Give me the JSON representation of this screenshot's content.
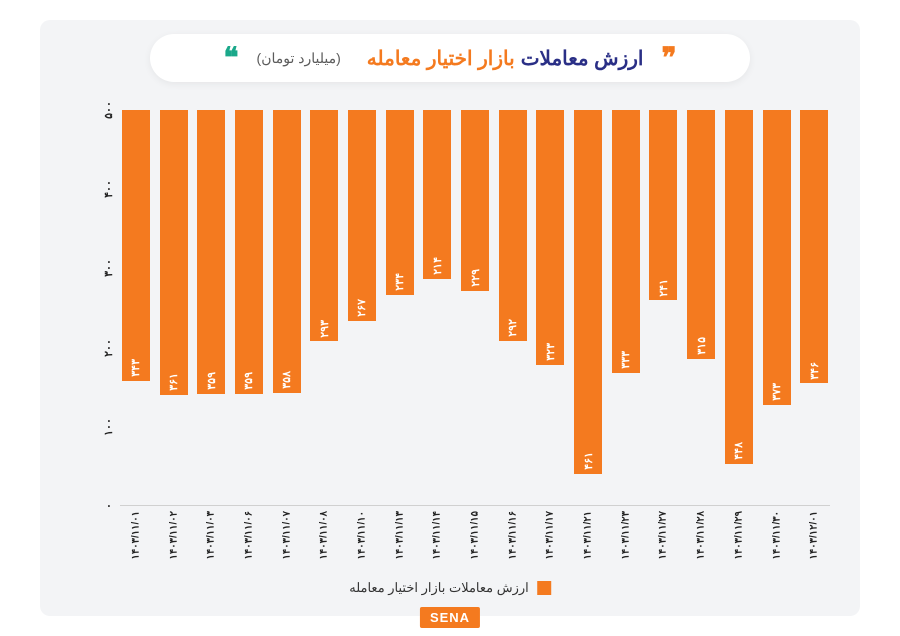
{
  "chart": {
    "type": "bar",
    "title_blue": "ارزش معاملات",
    "title_orange": "بازار اختیار معامله",
    "unit": "(میلیارد تومان)",
    "background_color": "#f3f4f6",
    "page_background": "#ffffff",
    "bar_color": "#f47a1f",
    "title_blue_color": "#2a2f86",
    "title_orange_color": "#f47a1f",
    "quote_right_color": "#f47a1f",
    "quote_left_color": "#1aa88a",
    "ylim": [
      0,
      500
    ],
    "ytick_step": 100,
    "yticks": [
      "۰",
      "۱۰۰",
      "۲۰۰",
      "۳۰۰",
      "۴۰۰",
      "۵۰۰"
    ],
    "legend_label": "ارزش معاملات بازار اختیار معامله",
    "bars": [
      {
        "date": "۱۴۰۳/۱۱/۰۱",
        "value": 343,
        "label": "۳۴۳"
      },
      {
        "date": "۱۴۰۳/۱۱/۰۲",
        "value": 361,
        "label": "۳۶۱"
      },
      {
        "date": "۱۴۰۳/۱۱/۰۳",
        "value": 359,
        "label": "۳۵۹"
      },
      {
        "date": "۱۴۰۳/۱۱/۰۶",
        "value": 359,
        "label": "۳۵۹"
      },
      {
        "date": "۱۴۰۳/۱۱/۰۷",
        "value": 358,
        "label": "۳۵۸"
      },
      {
        "date": "۱۴۰۳/۱۱/۰۸",
        "value": 293,
        "label": "۲۹۳"
      },
      {
        "date": "۱۴۰۳/۱۱/۱۰",
        "value": 267,
        "label": "۲۶۷"
      },
      {
        "date": "۱۴۰۳/۱۱/۱۳",
        "value": 234,
        "label": "۲۳۴"
      },
      {
        "date": "۱۴۰۳/۱۱/۱۴",
        "value": 214,
        "label": "۲۱۴"
      },
      {
        "date": "۱۴۰۳/۱۱/۱۵",
        "value": 229,
        "label": "۲۲۹"
      },
      {
        "date": "۱۴۰۳/۱۱/۱۶",
        "value": 292,
        "label": "۲۹۲"
      },
      {
        "date": "۱۴۰۳/۱۱/۱۷",
        "value": 323,
        "label": "۳۲۳"
      },
      {
        "date": "۱۴۰۳/۱۱/۲۱",
        "value": 461,
        "label": "۴۶۱"
      },
      {
        "date": "۱۴۰۳/۱۱/۲۳",
        "value": 333,
        "label": "۳۳۳"
      },
      {
        "date": "۱۴۰۳/۱۱/۲۷",
        "value": 241,
        "label": "۲۴۱"
      },
      {
        "date": "۱۴۰۳/۱۱/۲۸",
        "value": 315,
        "label": "۳۱۵"
      },
      {
        "date": "۱۴۰۳/۱۱/۲۹",
        "value": 448,
        "label": "۴۴۸"
      },
      {
        "date": "۱۴۰۳/۱۱/۳۰",
        "value": 373,
        "label": "۳۷۳"
      },
      {
        "date": "۱۴۰۳/۱۲/۰۱",
        "value": 346,
        "label": "۳۴۶"
      }
    ],
    "title_fontsize": 20,
    "label_fontsize": 11,
    "bar_width": 0.75
  },
  "logo_text": "SENA"
}
